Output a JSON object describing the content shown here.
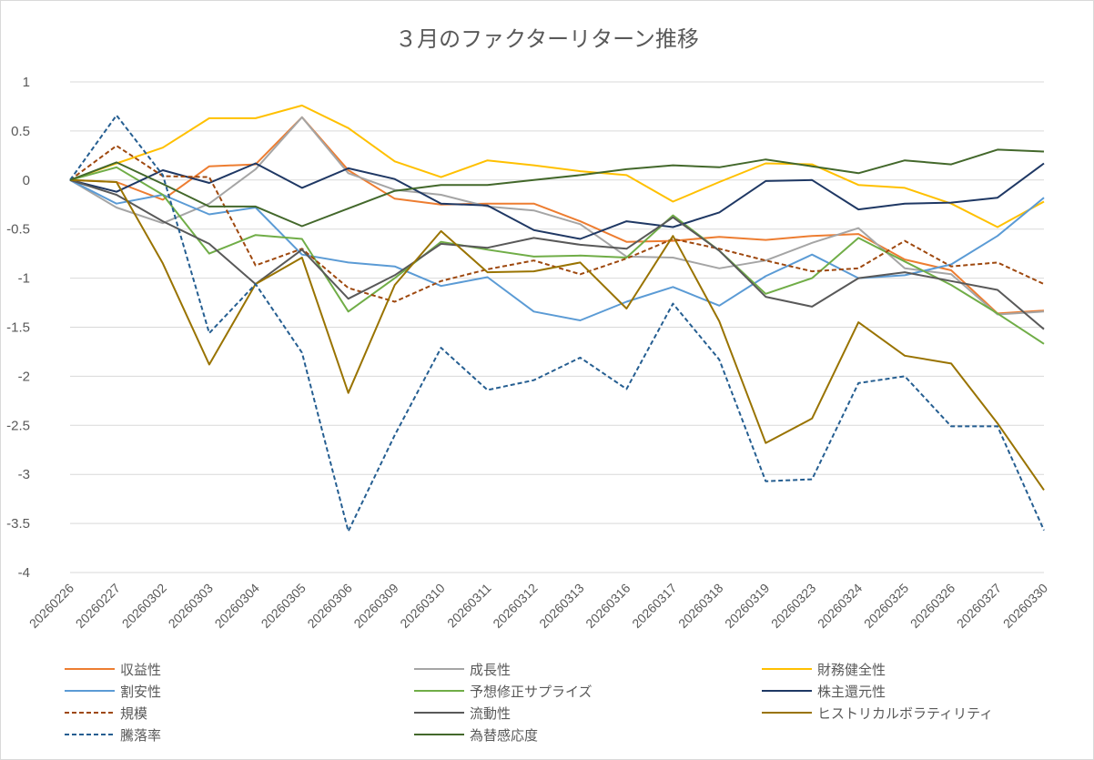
{
  "chart_data": {
    "type": "line",
    "title": "３月のファクターリターン推移",
    "xlabel": "",
    "ylabel": "",
    "ylim": [
      -4,
      1
    ],
    "yticks": [
      1,
      0.5,
      0,
      -0.5,
      -1,
      -1.5,
      -2,
      -2.5,
      -3,
      -3.5,
      -4
    ],
    "ytick_labels": [
      "1",
      "0.5",
      "0",
      "-0.5",
      "-1",
      "-1.5",
      "-2",
      "-2.5",
      "-3",
      "-3.5",
      "-4"
    ],
    "grid": true,
    "legend_position": "bottom",
    "categories": [
      "20260226",
      "20260227",
      "20260302",
      "20260303",
      "20260304",
      "20260305",
      "20260306",
      "20260309",
      "20260310",
      "20260311",
      "20260312",
      "20260313",
      "20260316",
      "20260317",
      "20260318",
      "20260319",
      "20260323",
      "20260324",
      "20260325",
      "20260326",
      "20260327",
      "20260330"
    ],
    "series": [
      {
        "name": "収益性",
        "color": "#ED7D31",
        "dash": "solid",
        "values": [
          0,
          -0.02,
          -0.2,
          0.14,
          0.16,
          0.64,
          0.1,
          -0.19,
          -0.25,
          -0.24,
          -0.24,
          -0.42,
          -0.63,
          -0.62,
          -0.58,
          -0.61,
          -0.57,
          -0.55,
          -0.81,
          -0.92,
          -1.36,
          -1.33
        ]
      },
      {
        "name": "成長性",
        "color": "#A5A5A5",
        "dash": "solid",
        "values": [
          0,
          -0.28,
          -0.44,
          -0.24,
          0.11,
          0.64,
          0.07,
          -0.1,
          -0.15,
          -0.27,
          -0.31,
          -0.45,
          -0.78,
          -0.79,
          -0.9,
          -0.82,
          -0.64,
          -0.49,
          -0.9,
          -0.96,
          -1.37,
          -1.34
        ]
      },
      {
        "name": "財務健全性",
        "color": "#FFC000",
        "dash": "solid",
        "values": [
          0,
          0.17,
          0.33,
          0.63,
          0.63,
          0.76,
          0.53,
          0.19,
          0.03,
          0.2,
          0.15,
          0.09,
          0.05,
          -0.22,
          -0.02,
          0.17,
          0.16,
          -0.05,
          -0.08,
          -0.24,
          -0.48,
          -0.22
        ]
      },
      {
        "name": "割安性",
        "color": "#5B9BD5",
        "dash": "solid",
        "values": [
          0,
          -0.24,
          -0.15,
          -0.35,
          -0.28,
          -0.76,
          -0.84,
          -0.88,
          -1.08,
          -0.99,
          -1.34,
          -1.43,
          -1.24,
          -1.09,
          -1.28,
          -0.98,
          -0.76,
          -1.0,
          -0.97,
          -0.86,
          -0.57,
          -0.18
        ]
      },
      {
        "name": "予想修正サプライズ",
        "color": "#70AD47",
        "dash": "solid",
        "values": [
          0,
          0.13,
          -0.15,
          -0.75,
          -0.56,
          -0.6,
          -1.34,
          -1.0,
          -0.63,
          -0.71,
          -0.78,
          -0.77,
          -0.79,
          -0.36,
          -0.72,
          -1.16,
          -1.0,
          -0.59,
          -0.83,
          -1.07,
          -1.36,
          -1.67
        ]
      },
      {
        "name": "株主還元性",
        "color": "#1F3864",
        "dash": "solid",
        "values": [
          0,
          -0.12,
          0.1,
          -0.03,
          0.17,
          -0.08,
          0.12,
          0.01,
          -0.24,
          -0.26,
          -0.51,
          -0.6,
          -0.42,
          -0.48,
          -0.33,
          -0.01,
          0.0,
          -0.3,
          -0.24,
          -0.23,
          -0.18,
          0.17
        ]
      },
      {
        "name": "規模",
        "color": "#9E480E",
        "dash": "dashed",
        "values": [
          0,
          0.35,
          0.04,
          0.03,
          -0.87,
          -0.7,
          -1.1,
          -1.24,
          -1.03,
          -0.91,
          -0.82,
          -0.96,
          -0.8,
          -0.6,
          -0.7,
          -0.82,
          -0.93,
          -0.9,
          -0.62,
          -0.88,
          -0.84,
          -1.06
        ]
      },
      {
        "name": "流動性",
        "color": "#595959",
        "dash": "solid",
        "values": [
          0,
          -0.15,
          -0.42,
          -0.65,
          -1.06,
          -0.71,
          -1.21,
          -0.97,
          -0.65,
          -0.69,
          -0.59,
          -0.66,
          -0.7,
          -0.38,
          -0.72,
          -1.19,
          -1.29,
          -1.0,
          -0.94,
          -1.03,
          -1.12,
          -1.52
        ]
      },
      {
        "name": "ヒストリカルボラティリティ",
        "color": "#997300",
        "dash": "solid",
        "values": [
          0,
          -0.02,
          -0.85,
          -1.88,
          -1.06,
          -0.79,
          -2.17,
          -1.07,
          -0.52,
          -0.94,
          -0.93,
          -0.84,
          -1.31,
          -0.57,
          -1.44,
          -2.68,
          -2.43,
          -1.45,
          -1.79,
          -1.87,
          -2.48,
          -3.16
        ]
      },
      {
        "name": "騰落率",
        "color": "#255E91",
        "dash": "dashed",
        "values": [
          0,
          0.66,
          0.05,
          -1.56,
          -1.06,
          -1.76,
          -3.58,
          -2.6,
          -1.71,
          -2.14,
          -2.04,
          -1.81,
          -2.13,
          -1.26,
          -1.83,
          -3.07,
          -3.05,
          -2.07,
          -2.0,
          -2.51,
          -2.51,
          -3.57
        ]
      },
      {
        "name": "為替感応度",
        "color": "#43682B",
        "dash": "solid",
        "values": [
          0,
          0.18,
          -0.04,
          -0.27,
          -0.27,
          -0.47,
          -0.29,
          -0.11,
          -0.05,
          -0.05,
          0.0,
          0.05,
          0.11,
          0.15,
          0.13,
          0.21,
          0.14,
          0.07,
          0.2,
          0.16,
          0.31,
          0.29
        ]
      }
    ]
  }
}
